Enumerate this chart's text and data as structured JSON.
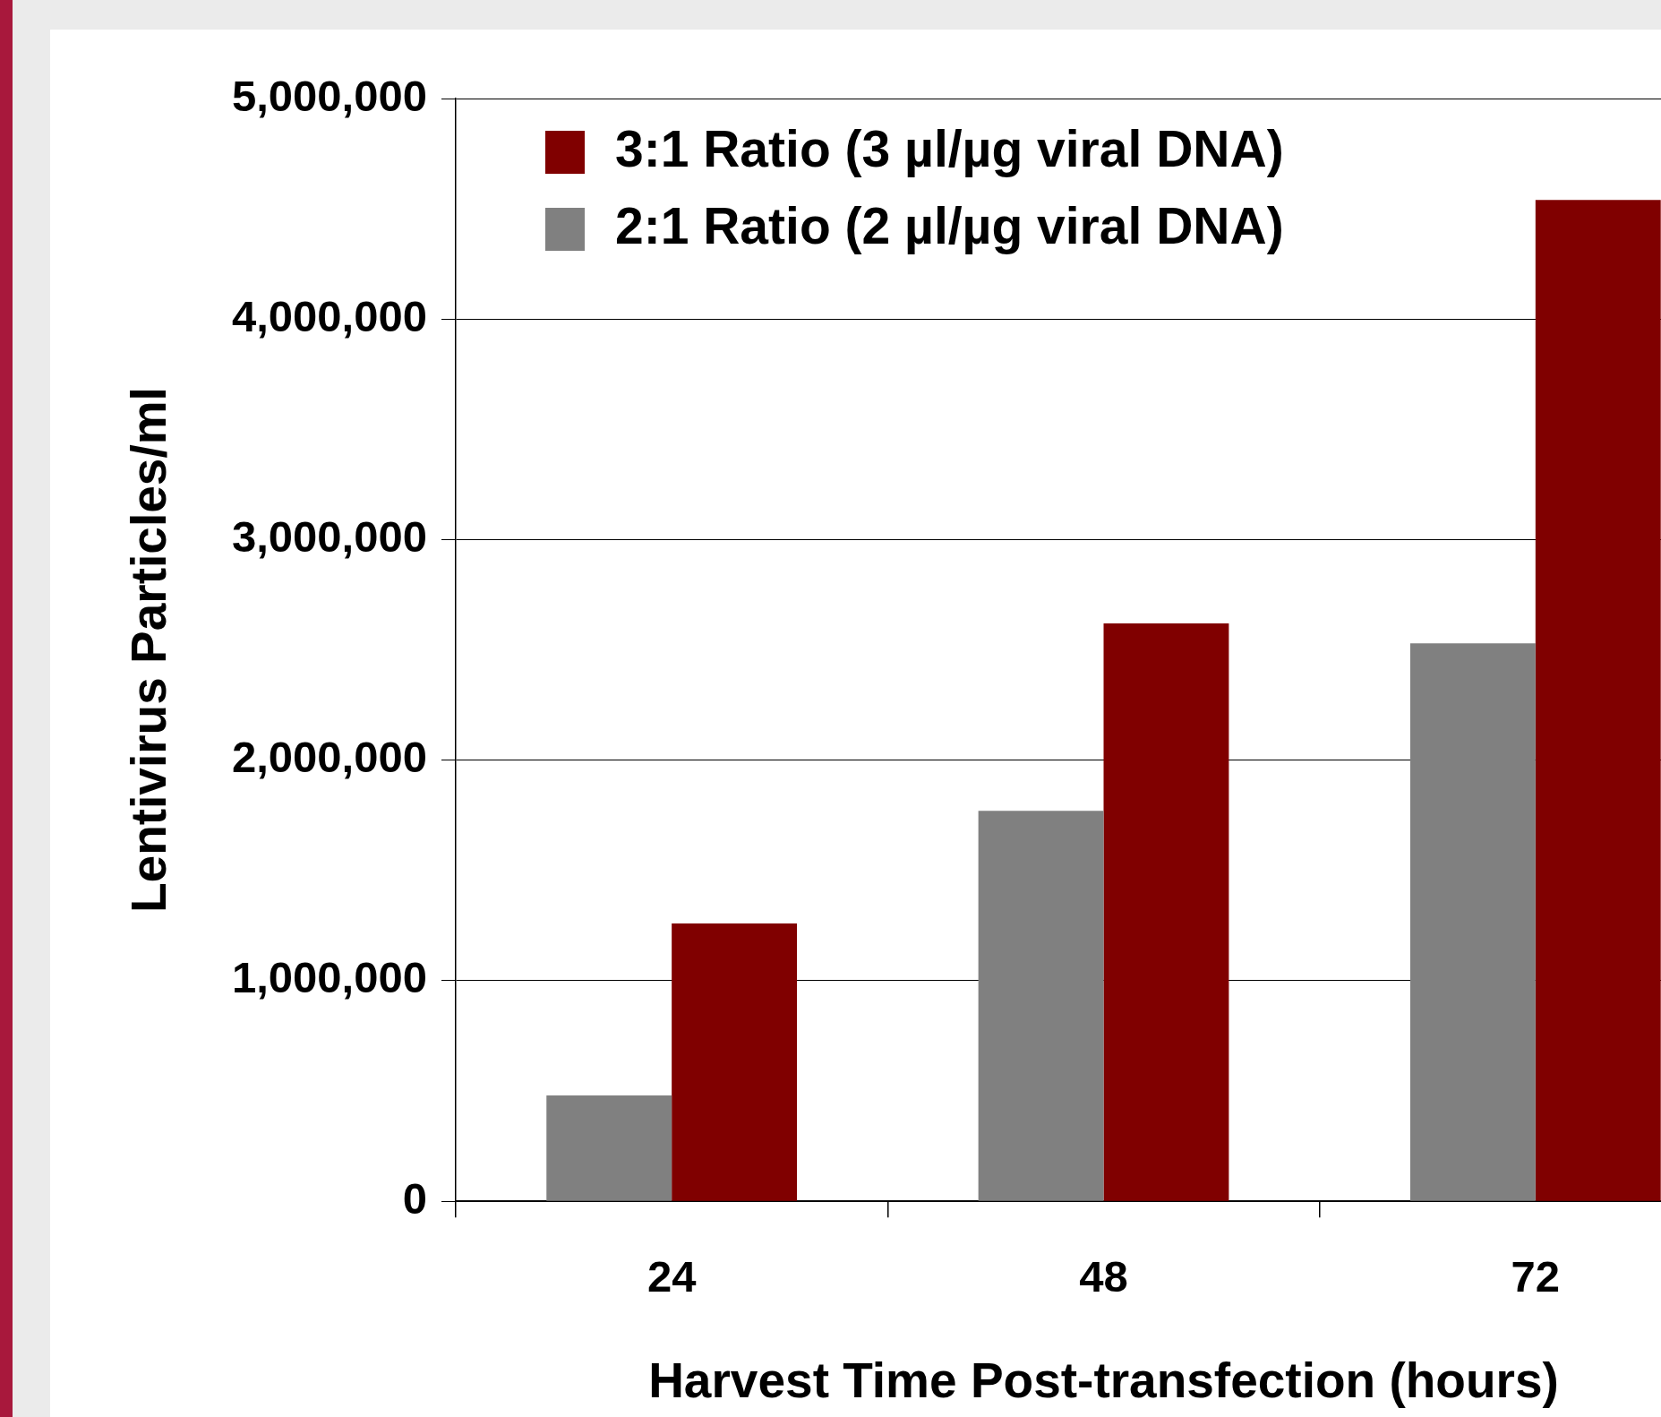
{
  "chart_data": {
    "type": "bar",
    "xlabel": "Harvest Time Post-transfection (hours)",
    "ylabel": "Lentivirus Particles/ml",
    "categories": [
      "24",
      "48",
      "72"
    ],
    "series": [
      {
        "name": "2:1 Ratio (2 µl/µg viral DNA)",
        "color": "#808080",
        "values": [
          480000,
          1770000,
          2530000
        ]
      },
      {
        "name": "3:1 Ratio (3 µl/µg viral DNA)",
        "color": "#800000",
        "values": [
          1260000,
          2620000,
          4540000
        ]
      }
    ],
    "ylim": [
      0,
      5000000
    ],
    "yticks": [
      0,
      {
        "value": 1000000,
        "label": "1,000,000"
      },
      {
        "value": 2000000,
        "label": "2,000,000"
      },
      {
        "value": 3000000,
        "label": "3,000,000"
      },
      {
        "value": 4000000,
        "label": "4,000,000"
      },
      {
        "value": 5000000,
        "label": "5,000,000"
      }
    ],
    "grid": "y",
    "legend": "top left"
  }
}
